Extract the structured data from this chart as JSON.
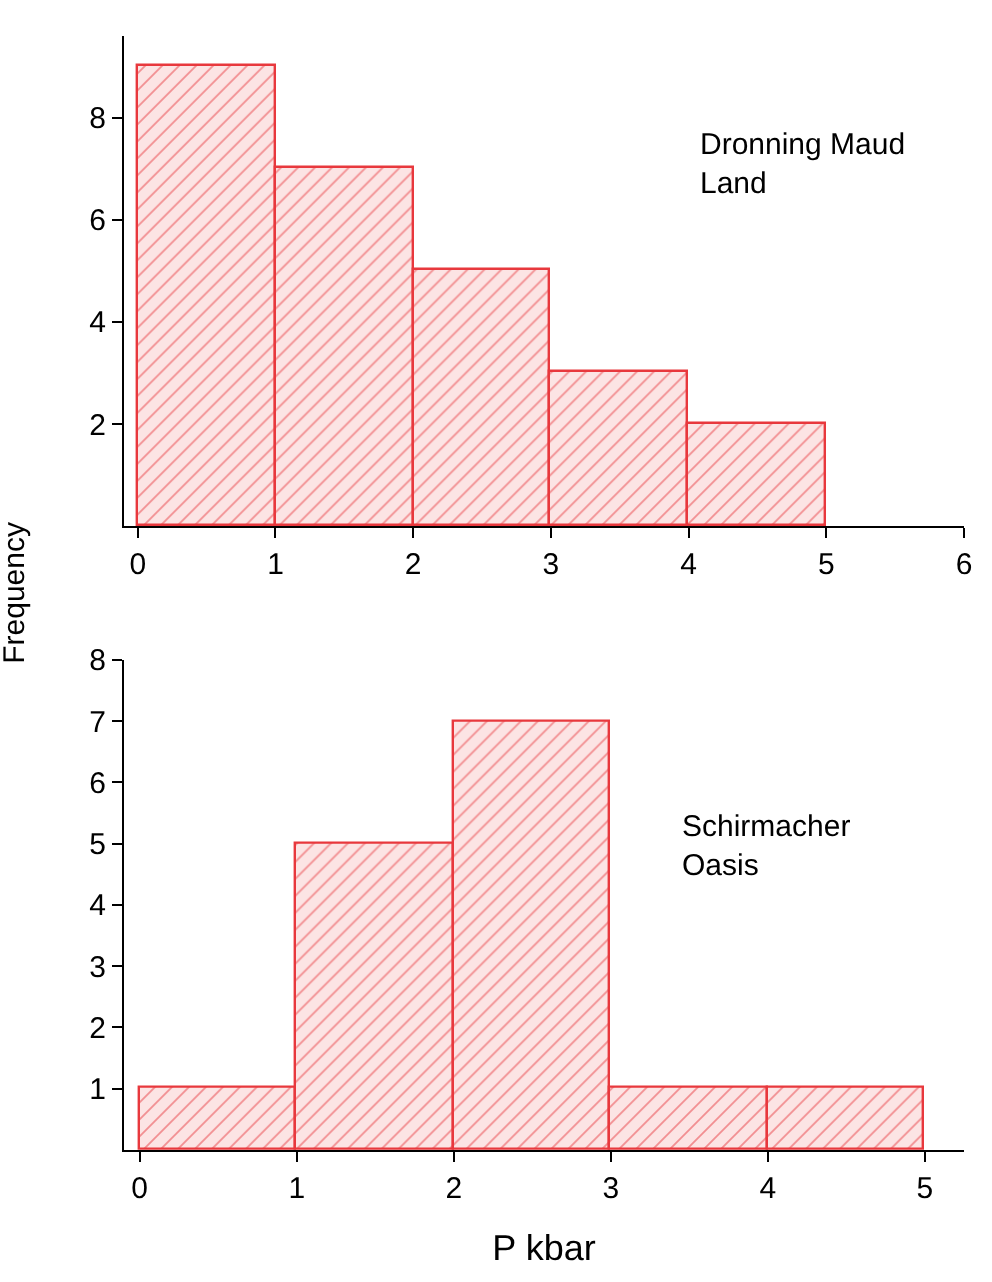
{
  "chart_data": [
    {
      "type": "histogram",
      "bins": [
        0,
        1,
        2,
        3,
        4,
        5
      ],
      "values": [
        9,
        7,
        5,
        3,
        2
      ],
      "color": "#e8383d",
      "xlim": [
        -0.1,
        6
      ],
      "xticks": [
        0,
        1,
        2,
        3,
        4,
        5,
        6
      ],
      "ylim": [
        0,
        9.6
      ],
      "yticks": [
        2,
        4,
        6,
        8
      ],
      "ylabel": "Frequency",
      "annotations": [
        "Dronning Maud\nLand"
      ]
    },
    {
      "type": "histogram",
      "bins": [
        0,
        1,
        2,
        3,
        4,
        5
      ],
      "values": [
        1,
        5,
        7,
        1,
        1
      ],
      "color": "#e8383d",
      "xlim": [
        -0.1,
        5.25
      ],
      "xticks": [
        0,
        1,
        2,
        3,
        4,
        5
      ],
      "ylim": [
        0,
        8
      ],
      "yticks": [
        1,
        2,
        3,
        4,
        5,
        6,
        7,
        8
      ],
      "xlabel": "P kbar",
      "annotations": [
        "Schirmacher\nOasis"
      ]
    }
  ]
}
